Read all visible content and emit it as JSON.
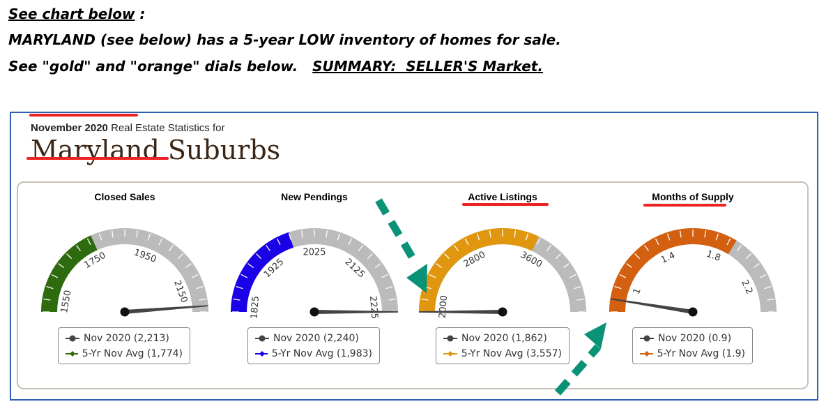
{
  "header": {
    "line1": "See chart below",
    "line1_suffix": " :",
    "line2": "MARYLAND (see below) has a 5-year LOW inventory of homes for sale.",
    "line3_prefix": "See \"gold\" and \"orange\" dials below.   ",
    "line3_summary": "SUMMARY:  SELLER'S Market."
  },
  "report": {
    "month": "November 2020",
    "subtitle": " Real Estate Statistics for",
    "region": "Maryland Suburbs"
  },
  "colors": {
    "track": "#bbbbbb",
    "needle": "#444444",
    "annotation_arrow": "#0a9276",
    "annotation_underline": "#ee2222"
  },
  "chart_data": [
    {
      "type": "gauge",
      "title": "Closed Sales",
      "min": 1510,
      "max": 2230,
      "tick_labels": [
        "1550",
        "1750",
        "1950",
        "2150"
      ],
      "tick_values": [
        1550,
        1750,
        1950,
        2150
      ],
      "color": "#2e6b0e",
      "current": {
        "label": "Nov 2020 (2,213)",
        "value": 2213
      },
      "average": {
        "label": "5-Yr Nov Avg (1,774)",
        "value": 1774
      }
    },
    {
      "type": "gauge",
      "title": "New Pendings",
      "min": 1815,
      "max": 2235,
      "tick_labels": [
        "1825",
        "1925",
        "2025",
        "2125",
        "2225"
      ],
      "tick_values": [
        1825,
        1925,
        2025,
        2125,
        2225
      ],
      "color": "#1a00e6",
      "current": {
        "label": "Nov 2020 (2,240)",
        "value": 2240
      },
      "average": {
        "label": "5-Yr Nov Avg (1,983)",
        "value": 1983
      }
    },
    {
      "type": "gauge",
      "title": "Active Listings",
      "min": 1930,
      "max": 4460,
      "tick_labels": [
        "2000",
        "2800",
        "3600"
      ],
      "tick_values": [
        2000,
        2800,
        3600
      ],
      "color": "#e0960f",
      "current": {
        "label": "Nov 2020 (1,862)",
        "value": 1862
      },
      "average": {
        "label": "5-Yr Nov Avg (3,557)",
        "value": 3557
      }
    },
    {
      "type": "gauge",
      "title": "Months of Supply",
      "min": 0.82,
      "max": 2.42,
      "tick_labels": [
        "1",
        "1.4",
        "1.8",
        "2.2"
      ],
      "tick_values": [
        1,
        1.4,
        1.8,
        2.2
      ],
      "color": "#d35f10",
      "current": {
        "label": "Nov 2020 (0.9)",
        "value": 0.9
      },
      "average": {
        "label": "5-Yr Nov Avg (1.9)",
        "value": 1.9
      }
    }
  ]
}
